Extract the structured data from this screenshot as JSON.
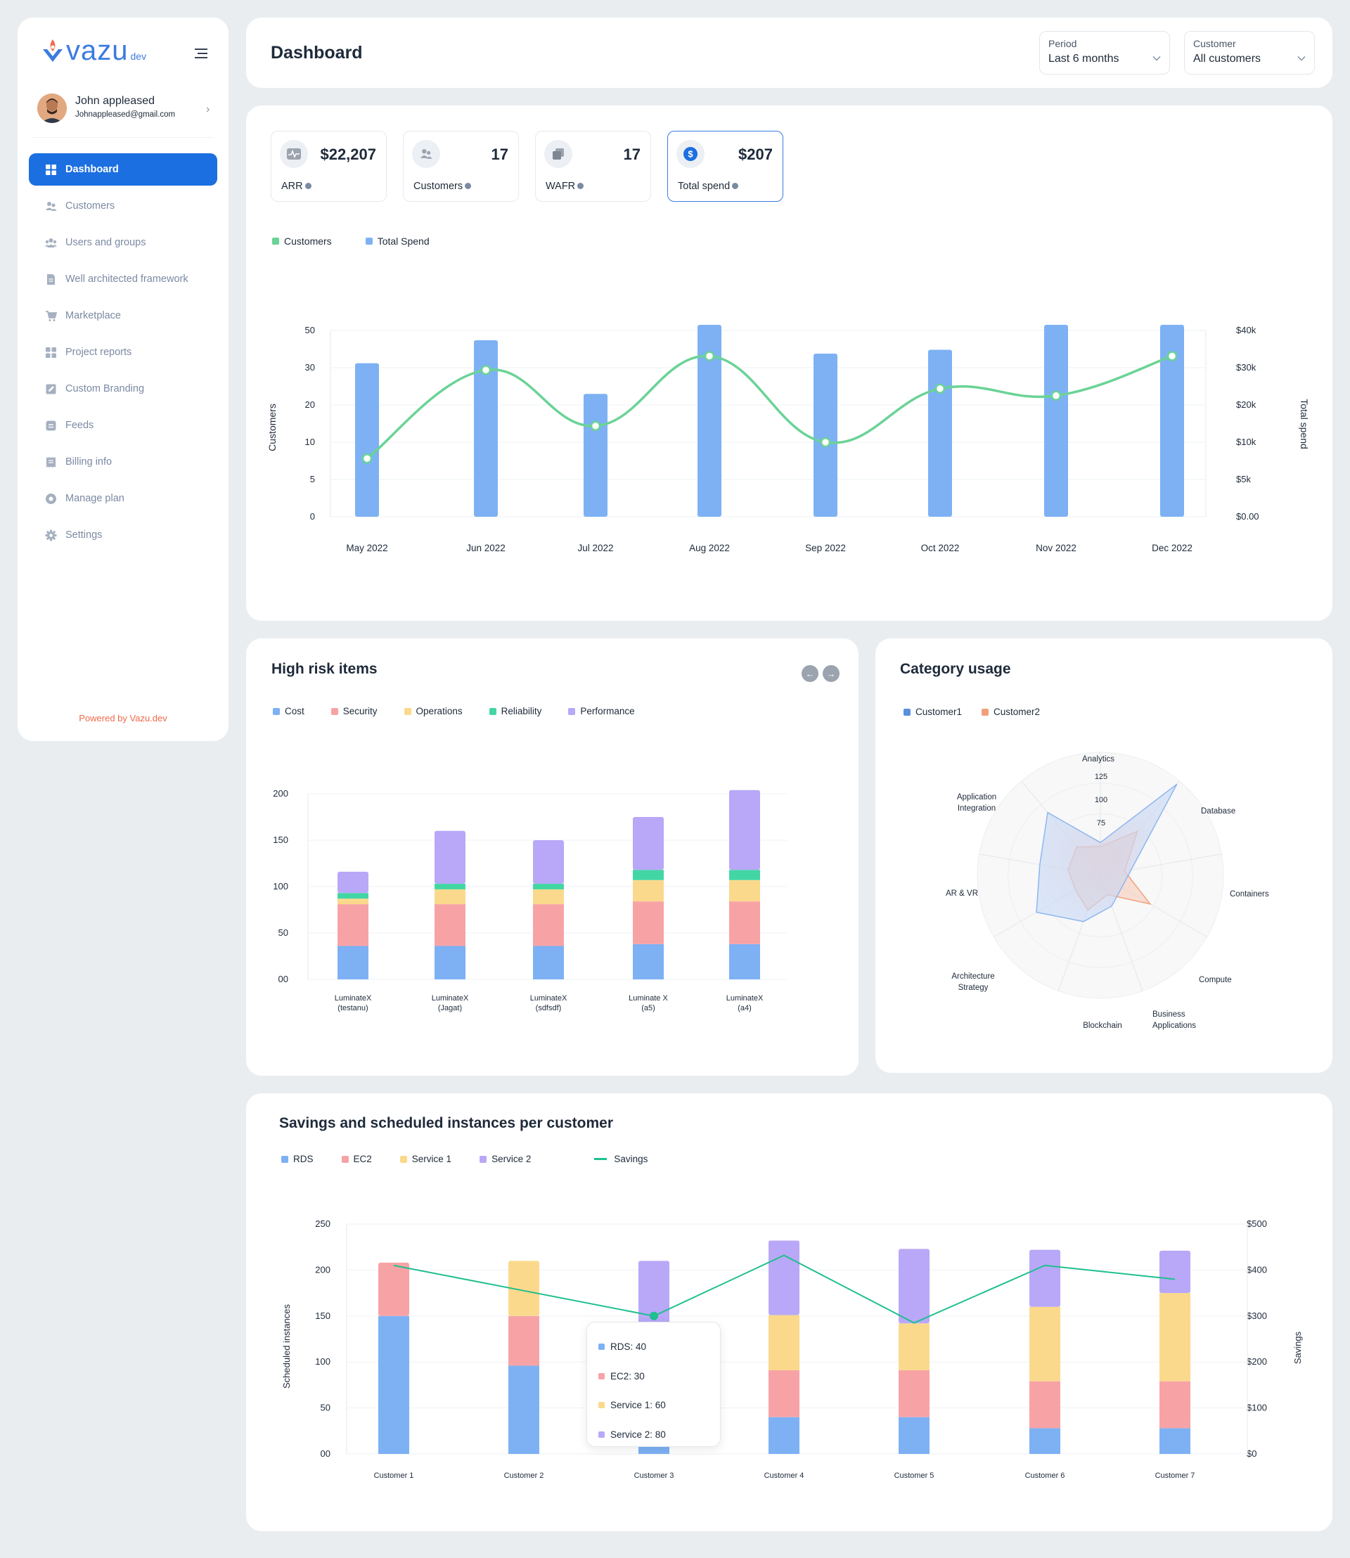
{
  "sidebar": {
    "logo_text": "vazu",
    "logo_suffix": "dev",
    "user": {
      "name": "John appleased",
      "email": "Johnappleased@gmail.com"
    },
    "items": [
      {
        "label": "Dashboard",
        "icon": "grid-icon",
        "active": true
      },
      {
        "label": "Customers",
        "icon": "user-pair-icon"
      },
      {
        "label": "Users and groups",
        "icon": "users-group-icon"
      },
      {
        "label": "Well architected framework",
        "icon": "document-icon"
      },
      {
        "label": "Marketplace",
        "icon": "cart-icon"
      },
      {
        "label": "Project reports",
        "icon": "grid-icon"
      },
      {
        "label": "Custom Branding",
        "icon": "edit-icon"
      },
      {
        "label": "Feeds",
        "icon": "feed-icon"
      },
      {
        "label": "Billing info",
        "icon": "receipt-icon"
      },
      {
        "label": "Manage plan",
        "icon": "plan-icon"
      },
      {
        "label": "Settings",
        "icon": "gear-icon"
      }
    ],
    "powered_by": "Powered by Vazu.dev"
  },
  "header": {
    "title": "Dashboard",
    "period": {
      "label": "Period",
      "value": "Last 6 months"
    },
    "customer": {
      "label": "Customer",
      "value": "All customers"
    }
  },
  "stats": [
    {
      "value": "$22,207",
      "label": "ARR",
      "icon": "pulse-icon"
    },
    {
      "value": "17",
      "label": "Customers",
      "icon": "user-pair-icon"
    },
    {
      "value": "17",
      "label": "WAFR",
      "icon": "layers-icon"
    },
    {
      "value": "$207",
      "label": "Total spend",
      "icon": "dollar-icon",
      "active": true
    }
  ],
  "colors": {
    "blue": "#7db1f4",
    "green": "#6ad396",
    "red": "#f7a3a6",
    "yellow": "#fbd98c",
    "teal": "#43d6a5",
    "purple": "#b8a8f7",
    "savings": "#1fbf8f",
    "primary": "#1c6fe0"
  },
  "chart_data": [
    {
      "type": "bar",
      "legend": [
        "Customers",
        "Total Spend"
      ],
      "categories": [
        "May 2022",
        "Jun 2022",
        "Jul 2022",
        "Aug 2022",
        "Sep 2022",
        "Oct  2022",
        "Nov 2022",
        "Dec 2022"
      ],
      "ylabel": "Customers",
      "y2label": "Total spend",
      "y_ticks": [
        "50",
        "30",
        "20",
        "10",
        "5",
        "0"
      ],
      "y2_ticks": [
        "$40k",
        "$30k",
        "$20k",
        "$10k",
        "$5k",
        "$0.00"
      ],
      "series": [
        {
          "name": "Total Spend",
          "type": "bar",
          "values": [
            40000,
            46000,
            32000,
            50000,
            42500,
            43500,
            50000,
            50000
          ]
        },
        {
          "name": "Customers",
          "type": "line",
          "values": [
            12.5,
            31.5,
            19.5,
            34.5,
            16,
            27.5,
            26,
            34.5
          ]
        }
      ]
    },
    {
      "type": "bar",
      "stacked": true,
      "title": "High risk items",
      "categories": [
        "LuminateX\n(testanu)",
        "LuminateX\n(Jagat)",
        "LuminateX\n(sdfsdf)",
        "Luminate X\n(a5)",
        "LuminateX\n(a4)"
      ],
      "y_ticks": [
        "200",
        "150",
        "100",
        "50",
        "00"
      ],
      "ylim": [
        0,
        200
      ],
      "series": [
        {
          "name": "Cost",
          "values": [
            36,
            36,
            36,
            38,
            38
          ]
        },
        {
          "name": "Security",
          "values": [
            45,
            45,
            45,
            46,
            46
          ]
        },
        {
          "name": "Operations",
          "values": [
            6,
            16,
            16,
            23,
            23
          ]
        },
        {
          "name": "Reliability",
          "values": [
            6,
            6,
            6,
            11,
            11
          ]
        },
        {
          "name": "Performance",
          "values": [
            23,
            57,
            47,
            57,
            86
          ]
        }
      ]
    },
    {
      "type": "radar",
      "title": "Category usage",
      "axes": [
        "Analytics",
        "Database",
        "Containers",
        "Compute",
        "Business\nApplications",
        "Blockchain",
        "Architecture\nStrategy",
        "AR & VR",
        "Application\nIntegration"
      ],
      "r_ticks": [
        "75",
        "100",
        "125"
      ],
      "rmax": 150,
      "series": [
        {
          "name": "Customer1",
          "values": [
            40,
            145,
            38,
            30,
            40,
            60,
            90,
            75,
            100
          ]
        },
        {
          "name": "Customer2",
          "values": [
            35,
            70,
            30,
            70,
            25,
            45,
            35,
            40,
            45
          ]
        }
      ]
    },
    {
      "type": "bar",
      "stacked": true,
      "title": "Savings and scheduled instances per customer",
      "categories": [
        "Customer 1",
        "Customer 2",
        "Customer 3",
        "Customer 4",
        "Customer 5",
        "Customer 6",
        "Customer 7"
      ],
      "ylabel": "Scheduled instances",
      "y2label": "Savings",
      "y_ticks": [
        "250",
        "200",
        "150",
        "100",
        "50",
        "00"
      ],
      "y2_ticks": [
        "$500",
        "$400",
        "$300",
        "$200",
        "$100",
        "$0"
      ],
      "ylim": [
        0,
        250
      ],
      "y2lim": [
        0,
        500
      ],
      "series": [
        {
          "name": "RDS",
          "values": [
            150,
            96,
            40,
            40,
            40,
            28,
            28
          ]
        },
        {
          "name": "EC2",
          "values": [
            58,
            54,
            30,
            51,
            51,
            51,
            51
          ]
        },
        {
          "name": "Service 1",
          "values": [
            0,
            60,
            60,
            60,
            51,
            81,
            96
          ]
        },
        {
          "name": "Service 2",
          "values": [
            0,
            0,
            80,
            81,
            81,
            62,
            46
          ]
        },
        {
          "name": "Savings",
          "type": "line",
          "values": [
            410,
            355,
            300,
            432,
            285,
            410,
            380
          ]
        }
      ]
    }
  ],
  "tooltip": {
    "rows": [
      "RDS: 40",
      "EC2: 30",
      "Service 1: 60",
      "Service 2: 80"
    ]
  }
}
